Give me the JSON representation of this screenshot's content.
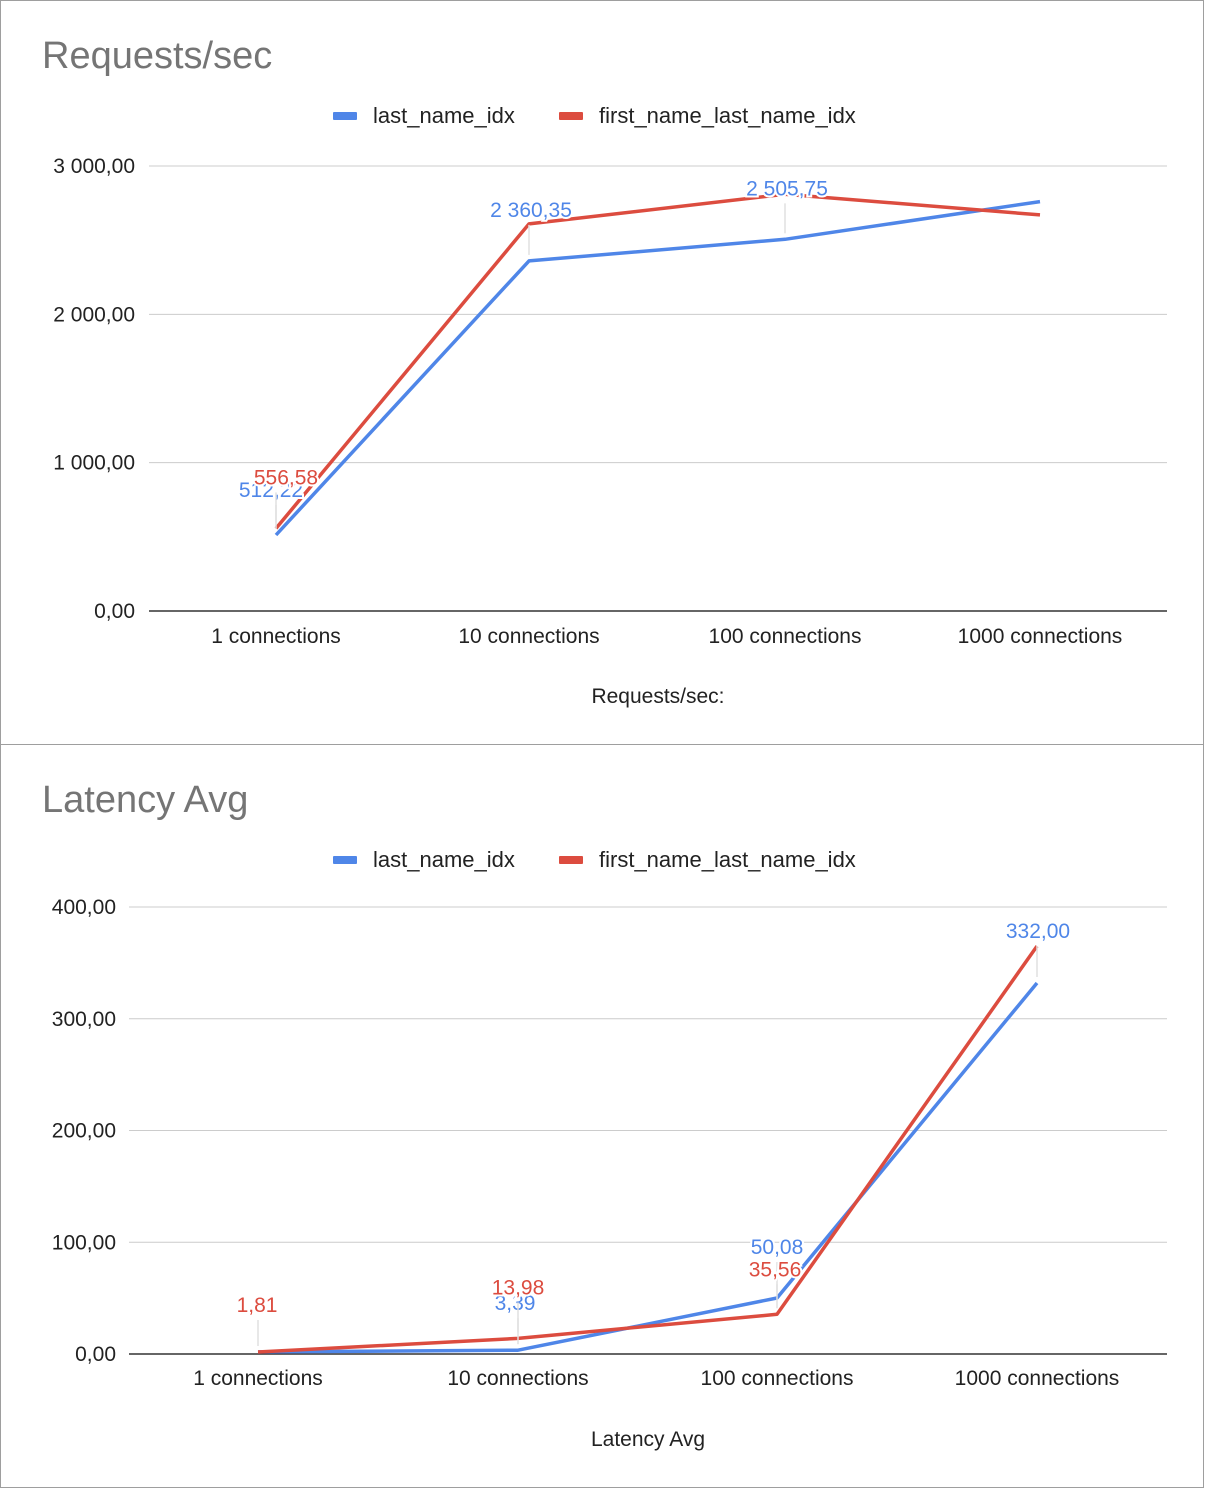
{
  "chart_data": [
    {
      "type": "line",
      "title": "Requests/sec",
      "xlabel": "Requests/sec:",
      "ylabel": "",
      "categories": [
        "1 connections",
        "10 connections",
        "100 connections",
        "1000 connections"
      ],
      "ylim": [
        0,
        3000
      ],
      "yticks": [
        "0,00",
        "1 000,00",
        "2 000,00",
        "3 000,00"
      ],
      "ytick_values": [
        0,
        1000,
        2000,
        3000
      ],
      "legend_position": "top",
      "grid": true,
      "series": [
        {
          "name": "last_name_idx",
          "color": "#4f86e8",
          "values": [
            512.22,
            2360.35,
            2505.75,
            2760
          ],
          "labels": [
            "512,22",
            "2 360,35",
            "2 505,75",
            ""
          ]
        },
        {
          "name": "first_name_last_name_idx",
          "color": "#dc4c3f",
          "values": [
            556.58,
            2610,
            2810,
            2670
          ],
          "labels": [
            "556,58",
            "",
            "",
            ""
          ]
        }
      ]
    },
    {
      "type": "line",
      "title": "Latency Avg",
      "xlabel": "Latency Avg",
      "ylabel": "",
      "categories": [
        "1 connections",
        "10 connections",
        "100 connections",
        "1000 connections"
      ],
      "ylim": [
        0,
        400
      ],
      "yticks": [
        "0,00",
        "100,00",
        "200,00",
        "300,00",
        "400,00"
      ],
      "ytick_values": [
        0,
        100,
        200,
        300,
        400
      ],
      "legend_position": "top",
      "grid": true,
      "series": [
        {
          "name": "last_name_idx",
          "color": "#4f86e8",
          "values": [
            1.9,
            3.39,
            50.08,
            332.0
          ],
          "labels": [
            "",
            "3,39",
            "50,08",
            "332,00"
          ]
        },
        {
          "name": "first_name_last_name_idx",
          "color": "#dc4c3f",
          "values": [
            1.81,
            13.98,
            35.56,
            365
          ],
          "labels": [
            "1,81",
            "13,98",
            "35,56",
            ""
          ]
        }
      ]
    }
  ]
}
